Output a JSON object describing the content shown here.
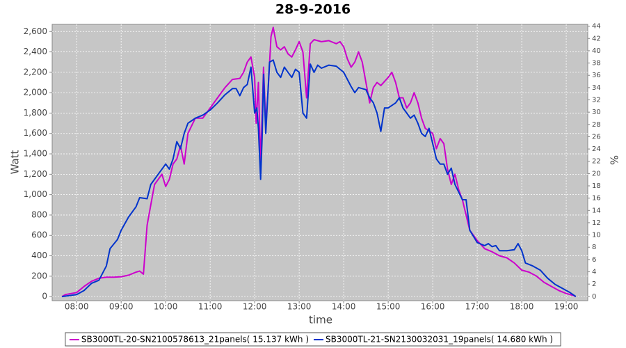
{
  "chart_data": {
    "type": "line",
    "title": "28-9-2016",
    "x_label": "time",
    "y_label": "Watt",
    "y2_label": "%",
    "xlim": [
      "07:27",
      "19:29"
    ],
    "xticks": [
      "08:00",
      "09:00",
      "10:00",
      "11:00",
      "12:00",
      "13:00",
      "14:00",
      "15:00",
      "16:00",
      "17:00",
      "18:00",
      "19:00"
    ],
    "ylim": [
      -40,
      2670
    ],
    "yticks": [
      0,
      200,
      400,
      600,
      800,
      {
        "value": 1000,
        "label": "1,000"
      },
      {
        "value": 1200,
        "label": "1,200"
      },
      {
        "value": 1400,
        "label": "1,400"
      },
      {
        "value": 1600,
        "label": "1,600"
      },
      {
        "value": 1800,
        "label": "1,800"
      },
      {
        "value": 2000,
        "label": "2,000"
      },
      {
        "value": 2200,
        "label": "2,200"
      },
      {
        "value": 2400,
        "label": "2,400"
      },
      {
        "value": 2600,
        "label": "2,600"
      }
    ],
    "y2lim": [
      -0.7,
      44.3
    ],
    "y2ticks": [
      0,
      2,
      4,
      6,
      8,
      10,
      12,
      14,
      16,
      18,
      20,
      22,
      24,
      26,
      28,
      30,
      32,
      34,
      36,
      38,
      40,
      42,
      44
    ],
    "grid": true,
    "legend": "bottom",
    "series": [
      {
        "name": "SB3000TL-20-SN2100578613_21panels( 15.137 kWh )",
        "color": "#cc00cc",
        "x": [
          "07:40",
          "07:45",
          "08:00",
          "08:10",
          "08:20",
          "08:30",
          "08:40",
          "08:50",
          "09:00",
          "09:10",
          "09:20",
          "09:25",
          "09:30",
          "09:35",
          "09:40",
          "09:45",
          "09:50",
          "09:55",
          "10:00",
          "10:05",
          "10:10",
          "10:15",
          "10:20",
          "10:25",
          "10:30",
          "10:40",
          "10:50",
          "11:00",
          "11:10",
          "11:20",
          "11:30",
          "11:40",
          "11:45",
          "11:50",
          "11:55",
          "12:00",
          "12:02",
          "12:05",
          "12:08",
          "12:12",
          "12:15",
          "12:18",
          "12:22",
          "12:25",
          "12:30",
          "12:35",
          "12:40",
          "12:45",
          "12:50",
          "12:55",
          "13:00",
          "13:05",
          "13:10",
          "13:15",
          "13:20",
          "13:30",
          "13:40",
          "13:50",
          "13:55",
          "14:00",
          "14:05",
          "14:10",
          "14:15",
          "14:20",
          "14:25",
          "14:30",
          "14:35",
          "14:40",
          "14:45",
          "14:50",
          "15:00",
          "15:05",
          "15:10",
          "15:15",
          "15:20",
          "15:25",
          "15:30",
          "15:35",
          "15:40",
          "15:45",
          "15:50",
          "16:00",
          "16:05",
          "16:10",
          "16:15",
          "16:20",
          "16:25",
          "16:30",
          "16:35",
          "16:40",
          "16:50",
          "17:00",
          "17:10",
          "17:20",
          "17:30",
          "17:40",
          "17:50",
          "18:00",
          "18:10",
          "18:20",
          "18:30",
          "18:40",
          "18:50",
          "19:00",
          "19:10",
          "19:13"
        ],
        "values": [
          0,
          20,
          40,
          100,
          150,
          180,
          190,
          190,
          195,
          210,
          240,
          250,
          220,
          700,
          900,
          1100,
          1150,
          1200,
          1080,
          1150,
          1300,
          1350,
          1480,
          1300,
          1600,
          1750,
          1750,
          1850,
          1950,
          2050,
          2130,
          2140,
          2200,
          2300,
          2350,
          2150,
          1700,
          2100,
          1300,
          2250,
          1700,
          2000,
          2550,
          2640,
          2450,
          2420,
          2450,
          2380,
          2350,
          2420,
          2500,
          2400,
          1950,
          2480,
          2520,
          2500,
          2510,
          2480,
          2500,
          2450,
          2330,
          2250,
          2300,
          2400,
          2300,
          2100,
          1900,
          2050,
          2100,
          2070,
          2150,
          2200,
          2100,
          1950,
          1950,
          1850,
          1900,
          2000,
          1900,
          1750,
          1650,
          1600,
          1450,
          1550,
          1500,
          1250,
          1100,
          1200,
          1050,
          950,
          650,
          550,
          470,
          440,
          400,
          380,
          330,
          260,
          240,
          200,
          140,
          100,
          60,
          30,
          10,
          0
        ]
      },
      {
        "name": "SB3000TL-21-SN2130032031_19panels( 14.680 kWh )",
        "color": "#0033cc",
        "x": [
          "07:40",
          "08:00",
          "08:10",
          "08:20",
          "08:30",
          "08:40",
          "08:45",
          "08:55",
          "09:00",
          "09:10",
          "09:20",
          "09:25",
          "09:35",
          "09:40",
          "09:50",
          "10:00",
          "10:05",
          "10:10",
          "10:15",
          "10:20",
          "10:25",
          "10:30",
          "10:40",
          "10:50",
          "11:00",
          "11:10",
          "11:20",
          "11:30",
          "11:35",
          "11:40",
          "11:45",
          "11:50",
          "11:55",
          "12:00",
          "12:03",
          "12:05",
          "12:08",
          "12:10",
          "12:12",
          "12:15",
          "12:20",
          "12:25",
          "12:30",
          "12:35",
          "12:40",
          "12:45",
          "12:50",
          "12:55",
          "13:00",
          "13:05",
          "13:10",
          "13:15",
          "13:20",
          "13:25",
          "13:30",
          "13:40",
          "13:50",
          "14:00",
          "14:10",
          "14:15",
          "14:20",
          "14:30",
          "14:35",
          "14:40",
          "14:45",
          "14:50",
          "14:55",
          "15:00",
          "15:10",
          "15:15",
          "15:20",
          "15:25",
          "15:30",
          "15:35",
          "15:40",
          "15:45",
          "15:50",
          "15:55",
          "16:00",
          "16:05",
          "16:10",
          "16:15",
          "16:20",
          "16:25",
          "16:30",
          "16:40",
          "16:45",
          "16:50",
          "17:00",
          "17:10",
          "17:15",
          "17:20",
          "17:25",
          "17:30",
          "17:40",
          "17:50",
          "17:55",
          "18:00",
          "18:05",
          "18:15",
          "18:25",
          "18:35",
          "18:45",
          "18:55",
          "19:05",
          "19:13"
        ],
        "values": [
          0,
          20,
          60,
          130,
          160,
          300,
          470,
          560,
          650,
          780,
          880,
          970,
          960,
          1100,
          1200,
          1300,
          1250,
          1350,
          1520,
          1450,
          1600,
          1700,
          1750,
          1780,
          1830,
          1900,
          1980,
          2040,
          2040,
          1970,
          2050,
          2080,
          2250,
          1800,
          1850,
          1650,
          1150,
          1550,
          2180,
          1600,
          2300,
          2320,
          2200,
          2150,
          2250,
          2200,
          2150,
          2230,
          2200,
          1800,
          1750,
          2280,
          2200,
          2270,
          2240,
          2270,
          2260,
          2200,
          2060,
          2000,
          2050,
          2030,
          1950,
          1900,
          1800,
          1620,
          1850,
          1850,
          1900,
          1950,
          1850,
          1800,
          1750,
          1780,
          1700,
          1600,
          1570,
          1650,
          1500,
          1350,
          1300,
          1300,
          1200,
          1260,
          1100,
          950,
          950,
          650,
          530,
          500,
          520,
          490,
          500,
          450,
          450,
          460,
          520,
          450,
          330,
          300,
          260,
          180,
          120,
          80,
          40,
          0
        ]
      }
    ]
  }
}
